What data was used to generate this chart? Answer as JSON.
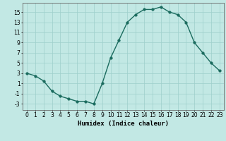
{
  "x": [
    0,
    1,
    2,
    3,
    4,
    5,
    6,
    7,
    8,
    9,
    10,
    11,
    12,
    13,
    14,
    15,
    16,
    17,
    18,
    19,
    20,
    21,
    22,
    23
  ],
  "y": [
    3,
    2.5,
    1.5,
    -0.5,
    -1.5,
    -2,
    -2.5,
    -2.5,
    -3,
    1,
    6,
    9.5,
    13,
    14.5,
    15.5,
    15.5,
    16,
    15,
    14.5,
    13,
    9,
    7,
    5,
    3.5
  ],
  "line_color": "#1a6b5e",
  "marker_color": "#1a6b5e",
  "bg_color": "#c2e8e4",
  "grid_color": "#9dcfcb",
  "xlabel": "Humidex (Indice chaleur)",
  "xlim": [
    -0.5,
    23.5
  ],
  "ylim": [
    -4.2,
    16.8
  ],
  "yticks": [
    -3,
    -1,
    1,
    3,
    5,
    7,
    9,
    11,
    13,
    15
  ],
  "xticks": [
    0,
    1,
    2,
    3,
    4,
    5,
    6,
    7,
    8,
    9,
    10,
    11,
    12,
    13,
    14,
    15,
    16,
    17,
    18,
    19,
    20,
    21,
    22,
    23
  ],
  "xlabel_fontsize": 6.5,
  "tick_fontsize": 5.5,
  "line_width": 1.0,
  "marker_size": 2.5
}
